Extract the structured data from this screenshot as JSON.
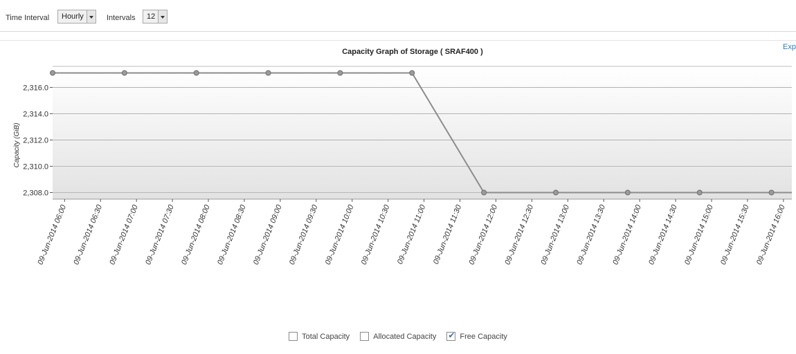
{
  "toolbar": {
    "time_interval_label": "Time Interval",
    "time_interval_value": "Hourly",
    "intervals_label": "Intervals",
    "intervals_value": "12"
  },
  "export_label": "Exp",
  "legend": [
    {
      "label": "Total Capacity",
      "checked": false
    },
    {
      "label": "Allocated Capacity",
      "checked": false
    },
    {
      "label": "Free Capacity",
      "checked": true
    }
  ],
  "chart_data": {
    "type": "line",
    "title": "Capacity Graph of Storage ( SRAF400 )",
    "ylabel": "Capacity (GiB)",
    "xlabel": "",
    "ylim": [
      2307.5,
      2317.6
    ],
    "yticks": [
      2308.0,
      2310.0,
      2312.0,
      2314.0,
      2316.0
    ],
    "ytick_labels": [
      "2,308.0",
      "2,310.0",
      "2,312.0",
      "2,314.0",
      "2,316.0"
    ],
    "xticks": [
      "09-Jun-2014 06:00",
      "09-Jun-2014 06:30",
      "09-Jun-2014 07:00",
      "09-Jun-2014 07:30",
      "09-Jun-2014 08:00",
      "09-Jun-2014 08:30",
      "09-Jun-2014 09:00",
      "09-Jun-2014 09:30",
      "09-Jun-2014 10:00",
      "09-Jun-2014 10:30",
      "09-Jun-2014 11:00",
      "09-Jun-2014 11:30",
      "09-Jun-2014 12:00",
      "09-Jun-2014 12:30",
      "09-Jun-2014 13:00",
      "09-Jun-2014 13:30",
      "09-Jun-2014 14:00",
      "09-Jun-2014 14:30",
      "09-Jun-2014 15:00",
      "09-Jun-2014 15:30",
      "09-Jun-2014 16:00"
    ],
    "x_range": [
      "09-Jun-2014 05:50",
      "09-Jun-2014 16:07"
    ],
    "grid": true,
    "series": [
      {
        "name": "Free Capacity",
        "color": "#8c8c8c",
        "x": [
          "09-Jun-2014 05:50",
          "09-Jun-2014 06:50",
          "09-Jun-2014 07:50",
          "09-Jun-2014 08:50",
          "09-Jun-2014 09:50",
          "09-Jun-2014 10:50",
          "09-Jun-2014 11:50",
          "09-Jun-2014 12:50",
          "09-Jun-2014 13:50",
          "09-Jun-2014 14:50",
          "09-Jun-2014 15:50"
        ],
        "values": [
          2317.1,
          2317.1,
          2317.1,
          2317.1,
          2317.1,
          2317.1,
          2308.0,
          2308.0,
          2308.0,
          2308.0,
          2308.0
        ]
      }
    ]
  }
}
